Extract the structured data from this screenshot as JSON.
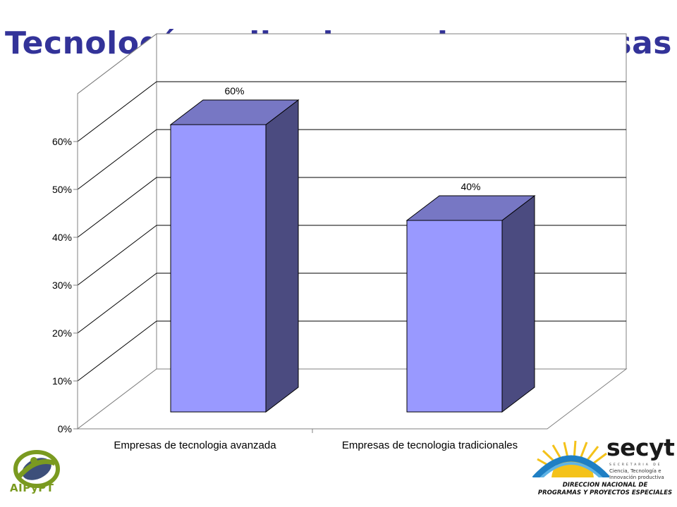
{
  "title": "Tecnología aplicada por las empresas",
  "chart_data": {
    "type": "bar",
    "categories": [
      "Empresas de tecnologia avanzada",
      "Empresas de tecnologia tradicionales"
    ],
    "values": [
      60,
      40
    ],
    "data_labels": [
      "60%",
      "40%"
    ],
    "y_ticks": [
      "0%",
      "10%",
      "20%",
      "30%",
      "40%",
      "50%",
      "60%"
    ],
    "ylim": [
      0,
      60
    ],
    "grid": true,
    "three_d": true,
    "colors": {
      "front": "#9999ff",
      "top": "#7777c4",
      "side": "#4b4b80",
      "grid": "#000000",
      "axis": "#808080"
    }
  },
  "logos": {
    "left": {
      "text": "AIPyPT",
      "icon": "aipypt-logo-icon"
    },
    "right": {
      "word": "secyt",
      "sub_spaced": "SECRETARIA DE",
      "sub_lines": [
        "Ciencia, Tecnología e",
        "Innovación productiva"
      ],
      "direction_lines": [
        "DIRECCION NACIONAL DE",
        "PROGRAMAS Y PROYECTOS ESPECIALES"
      ],
      "icon": "secyt-sun-icon"
    }
  }
}
